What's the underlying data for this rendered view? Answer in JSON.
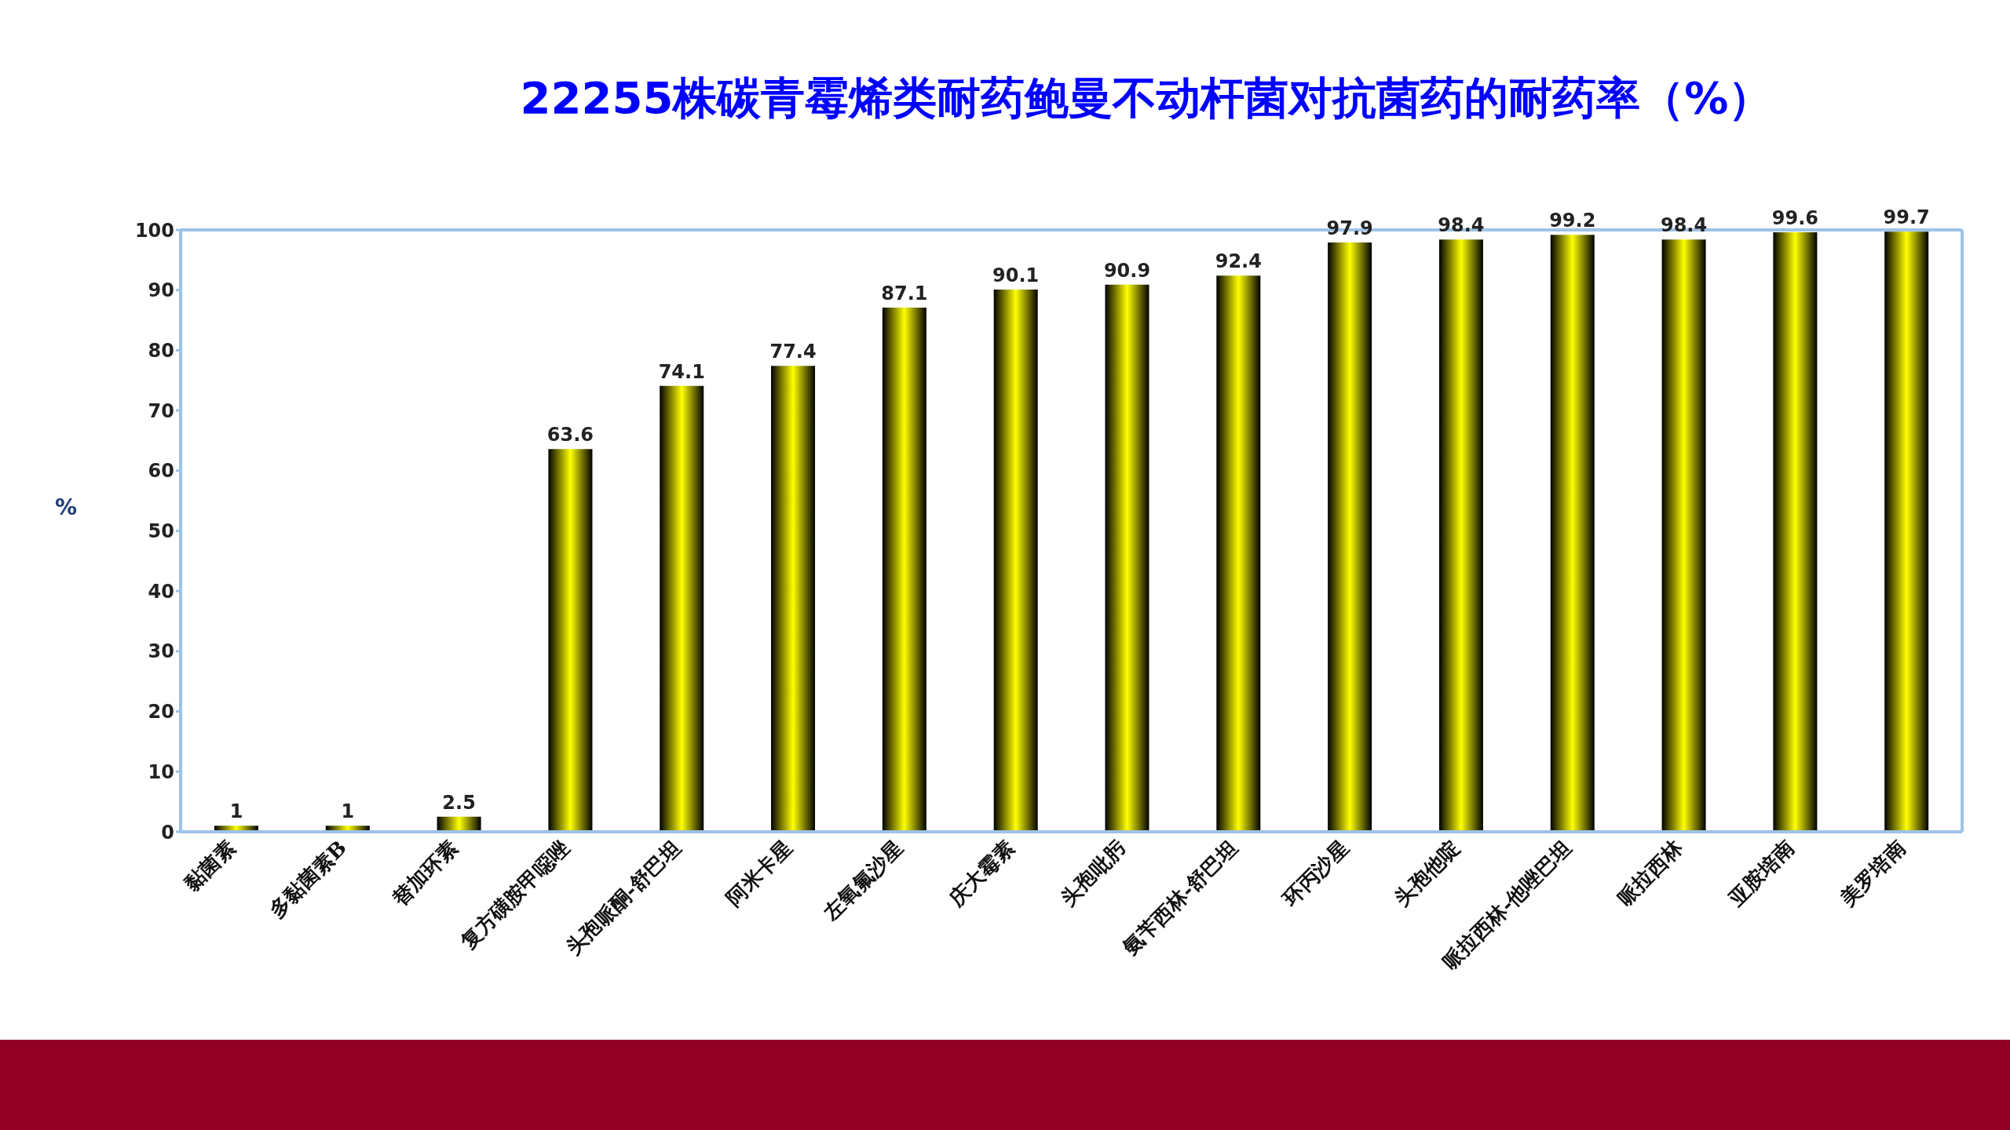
{
  "chart_data": {
    "type": "bar",
    "title": "22255株碳青霉烯类耐药鲍曼不动杆菌对抗菌药的耐药率（%）",
    "ylabel": "%",
    "categories": [
      "黏菌素",
      "多黏菌素B",
      "替加环素",
      "复方磺胺甲噁唑",
      "头孢哌酮-舒巴坦",
      "阿米卡星",
      "左氧氟沙星",
      "庆大霉素",
      "头孢吡肟",
      "氨苄西林-舒巴坦",
      "环丙沙星",
      "头孢他啶",
      "哌拉西林-他唑巴坦",
      "哌拉西林",
      "亚胺培南",
      "美罗培南"
    ],
    "values": [
      1,
      1,
      2.5,
      63.6,
      74.1,
      77.4,
      87.1,
      90.1,
      90.9,
      92.4,
      97.9,
      98.4,
      99.2,
      98.4,
      99.6,
      99.7
    ],
    "color": "#ffff00",
    "ylim": [
      0,
      100
    ],
    "yticks": [
      0,
      10,
      20,
      30,
      40,
      50,
      60,
      70,
      80,
      90,
      100
    ],
    "grid": false,
    "legend": false,
    "data_labels": true
  }
}
